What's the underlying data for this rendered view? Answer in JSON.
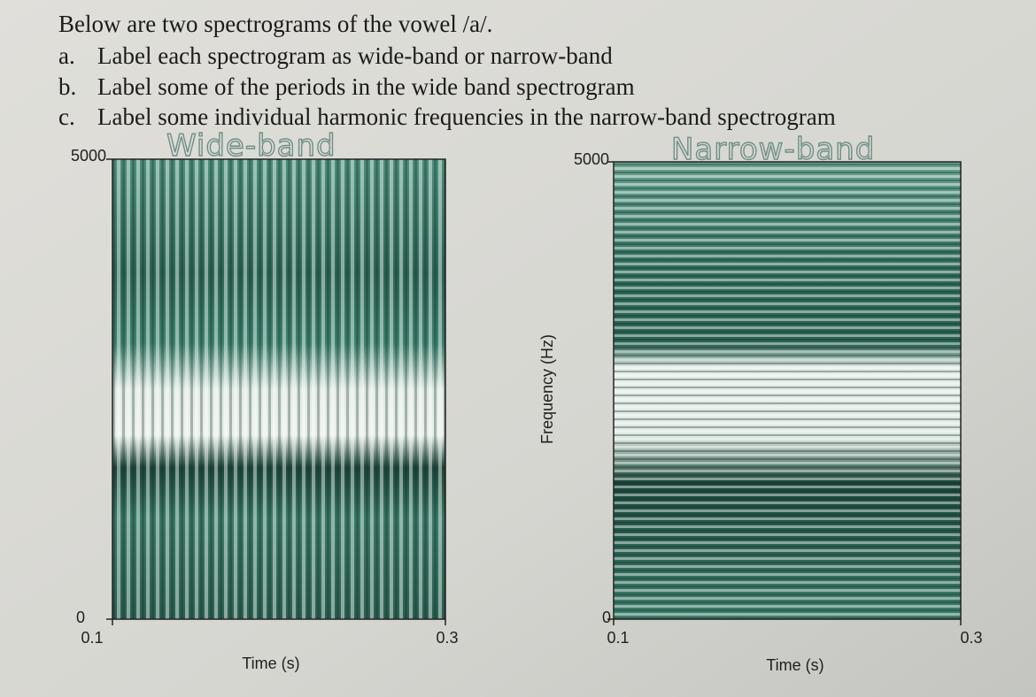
{
  "instructions": {
    "intro": "Below are two spectrograms of the vowel /a/.",
    "items": [
      {
        "marker": "a.",
        "text": "Label each spectrogram as wide-band or narrow-band"
      },
      {
        "marker": "b.",
        "text": "Label some of the periods in the wide band spectrogram"
      },
      {
        "marker": "c.",
        "text": "Label some individual harmonic frequencies in the narrow-band spectrogram"
      }
    ]
  },
  "spectrograms": [
    {
      "annotation": "Wide-band",
      "y_top": "5000",
      "y_bottom": "0",
      "x_start": "0.1",
      "x_end": "0.3",
      "x_label": "Time (s)"
    },
    {
      "annotation": "Narrow-band",
      "y_label": "Frequency (Hz)",
      "y_top": "5000",
      "y_bottom": "0",
      "x_start": "0.1",
      "x_end": "0.3",
      "x_label": "Time (s)"
    }
  ]
}
